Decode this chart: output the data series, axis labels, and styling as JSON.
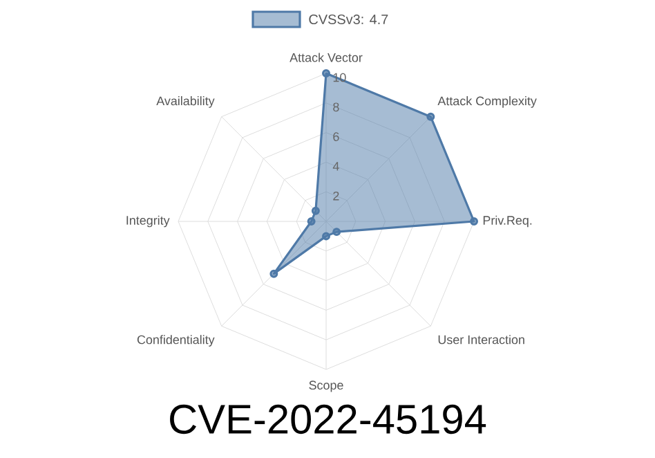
{
  "chart_data": {
    "type": "radar",
    "title": "CVE-2022-45194",
    "categories": [
      "Attack Vector",
      "Attack Complexity",
      "Priv.Req.",
      "User Interaction",
      "Scope",
      "Confidentiality",
      "Integrity",
      "Availability"
    ],
    "series": [
      {
        "name": "CVSSv3: 4.7",
        "color": "#4e79a7",
        "values": [
          10,
          10,
          10,
          1,
          1,
          5,
          1,
          1
        ]
      }
    ],
    "ylim": [
      0,
      10
    ],
    "yticks": [
      2,
      4,
      6,
      8,
      10
    ],
    "grid": true,
    "legend": "top",
    "marker": "circle",
    "line_style": "solid"
  }
}
